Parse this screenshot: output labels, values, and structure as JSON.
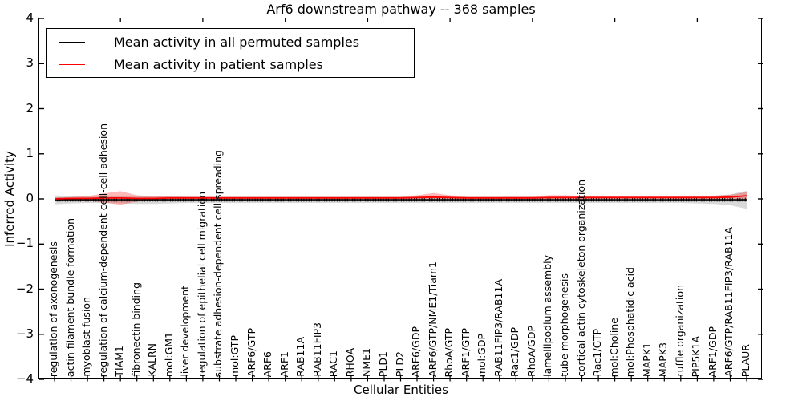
{
  "figure": {
    "title": "Arf6 downstream pathway -- 368 samples",
    "xlabel": "Cellular Entities",
    "ylabel": "Inferred Activity"
  },
  "legend": {
    "items": [
      {
        "label": "Mean activity in all permuted samples",
        "color": "#000000"
      },
      {
        "label": "Mean activity in patient samples",
        "color": "#ff0000"
      }
    ]
  },
  "chart_data": {
    "type": "line",
    "title": "Arf6 downstream pathway -- 368 samples",
    "xlabel": "Cellular Entities",
    "ylabel": "Inferred Activity",
    "ylim": [
      -4,
      4
    ],
    "yticks": [
      4,
      3,
      2,
      1,
      0,
      -1,
      -2,
      -3,
      -4
    ],
    "grid": false,
    "legend_position": "upper left",
    "x_major_tick_indices": [
      4,
      9,
      14,
      19,
      24,
      29,
      34,
      39
    ],
    "categories": [
      "regulation of axonogenesis",
      "actin filament bundle formation",
      "myoblast fusion",
      "regulation of calcium-dependent cell-cell adhesion",
      "TIAM1",
      "fibronectin binding",
      "KALRN",
      "mol:GM1",
      "liver development",
      "regulation of epithelial cell migration",
      "substrate adhesion-dependent cell spreading",
      "mol:GTP",
      "ARF6/GTP",
      "ARF6",
      "ARF1",
      "RAB11A",
      "RAB11FIP3",
      "RAC1",
      "RHOA",
      "NME1",
      "PLD1",
      "PLD2",
      "ARF6/GDP",
      "ARF6/GTP/NME1/Tiam1",
      "RhoA/GTP",
      "ARF1/GTP",
      "mol:GDP",
      "RAB11FIP3/RAB11A",
      "Rac1/GDP",
      "RhoA/GDP",
      "lamellipodium assembly",
      "tube morphogenesis",
      "cortical actin cytoskeleton organization",
      "Rac1/GTP",
      "mol:Choline",
      "mol:Phosphatidic acid",
      "MAPK1",
      "MAPK3",
      "ruffle organization",
      "PIP5K1A",
      "ARF1/GDP",
      "ARF6/GTP/RAB11FIP3/RAB11A",
      "PLAUR"
    ],
    "series": [
      {
        "name": "Mean activity in all permuted samples",
        "color": "#000000",
        "band_color": "rgba(0,0,0,0.15)",
        "values": [
          -0.02,
          -0.02,
          -0.02,
          -0.02,
          -0.02,
          -0.02,
          -0.02,
          -0.02,
          -0.02,
          -0.02,
          -0.02,
          -0.02,
          -0.02,
          -0.02,
          -0.02,
          -0.02,
          -0.02,
          -0.02,
          -0.02,
          -0.02,
          -0.02,
          -0.02,
          -0.02,
          -0.02,
          -0.02,
          -0.02,
          -0.02,
          -0.02,
          -0.02,
          -0.02,
          -0.02,
          -0.02,
          -0.02,
          -0.02,
          -0.02,
          -0.02,
          -0.02,
          -0.02,
          -0.02,
          -0.02,
          -0.02,
          -0.02,
          -0.02
        ],
        "band": [
          0.1,
          0.08,
          0.07,
          0.07,
          0.08,
          0.09,
          0.09,
          0.08,
          0.07,
          0.07,
          0.07,
          0.07,
          0.07,
          0.07,
          0.07,
          0.07,
          0.07,
          0.07,
          0.07,
          0.07,
          0.07,
          0.07,
          0.07,
          0.07,
          0.07,
          0.07,
          0.07,
          0.07,
          0.07,
          0.07,
          0.07,
          0.07,
          0.07,
          0.07,
          0.07,
          0.07,
          0.07,
          0.07,
          0.07,
          0.08,
          0.09,
          0.12,
          0.2
        ]
      },
      {
        "name": "Mean activity in patient samples",
        "color": "#ff0000",
        "band_color": "rgba(255,0,0,0.28)",
        "values": [
          0.0,
          0.01,
          0.01,
          0.02,
          0.02,
          0.01,
          0.01,
          0.02,
          0.02,
          0.02,
          0.02,
          0.02,
          0.02,
          0.02,
          0.02,
          0.02,
          0.02,
          0.02,
          0.02,
          0.02,
          0.02,
          0.02,
          0.03,
          0.04,
          0.03,
          0.02,
          0.02,
          0.02,
          0.02,
          0.02,
          0.03,
          0.03,
          0.03,
          0.03,
          0.03,
          0.03,
          0.03,
          0.03,
          0.03,
          0.03,
          0.03,
          0.04,
          0.07
        ],
        "band": [
          0.03,
          0.03,
          0.05,
          0.1,
          0.15,
          0.07,
          0.04,
          0.05,
          0.04,
          0.03,
          0.03,
          0.03,
          0.03,
          0.03,
          0.03,
          0.03,
          0.03,
          0.03,
          0.03,
          0.03,
          0.03,
          0.03,
          0.05,
          0.09,
          0.05,
          0.03,
          0.03,
          0.03,
          0.04,
          0.04,
          0.05,
          0.05,
          0.04,
          0.03,
          0.03,
          0.03,
          0.03,
          0.03,
          0.04,
          0.04,
          0.04,
          0.05,
          0.08
        ]
      }
    ]
  }
}
